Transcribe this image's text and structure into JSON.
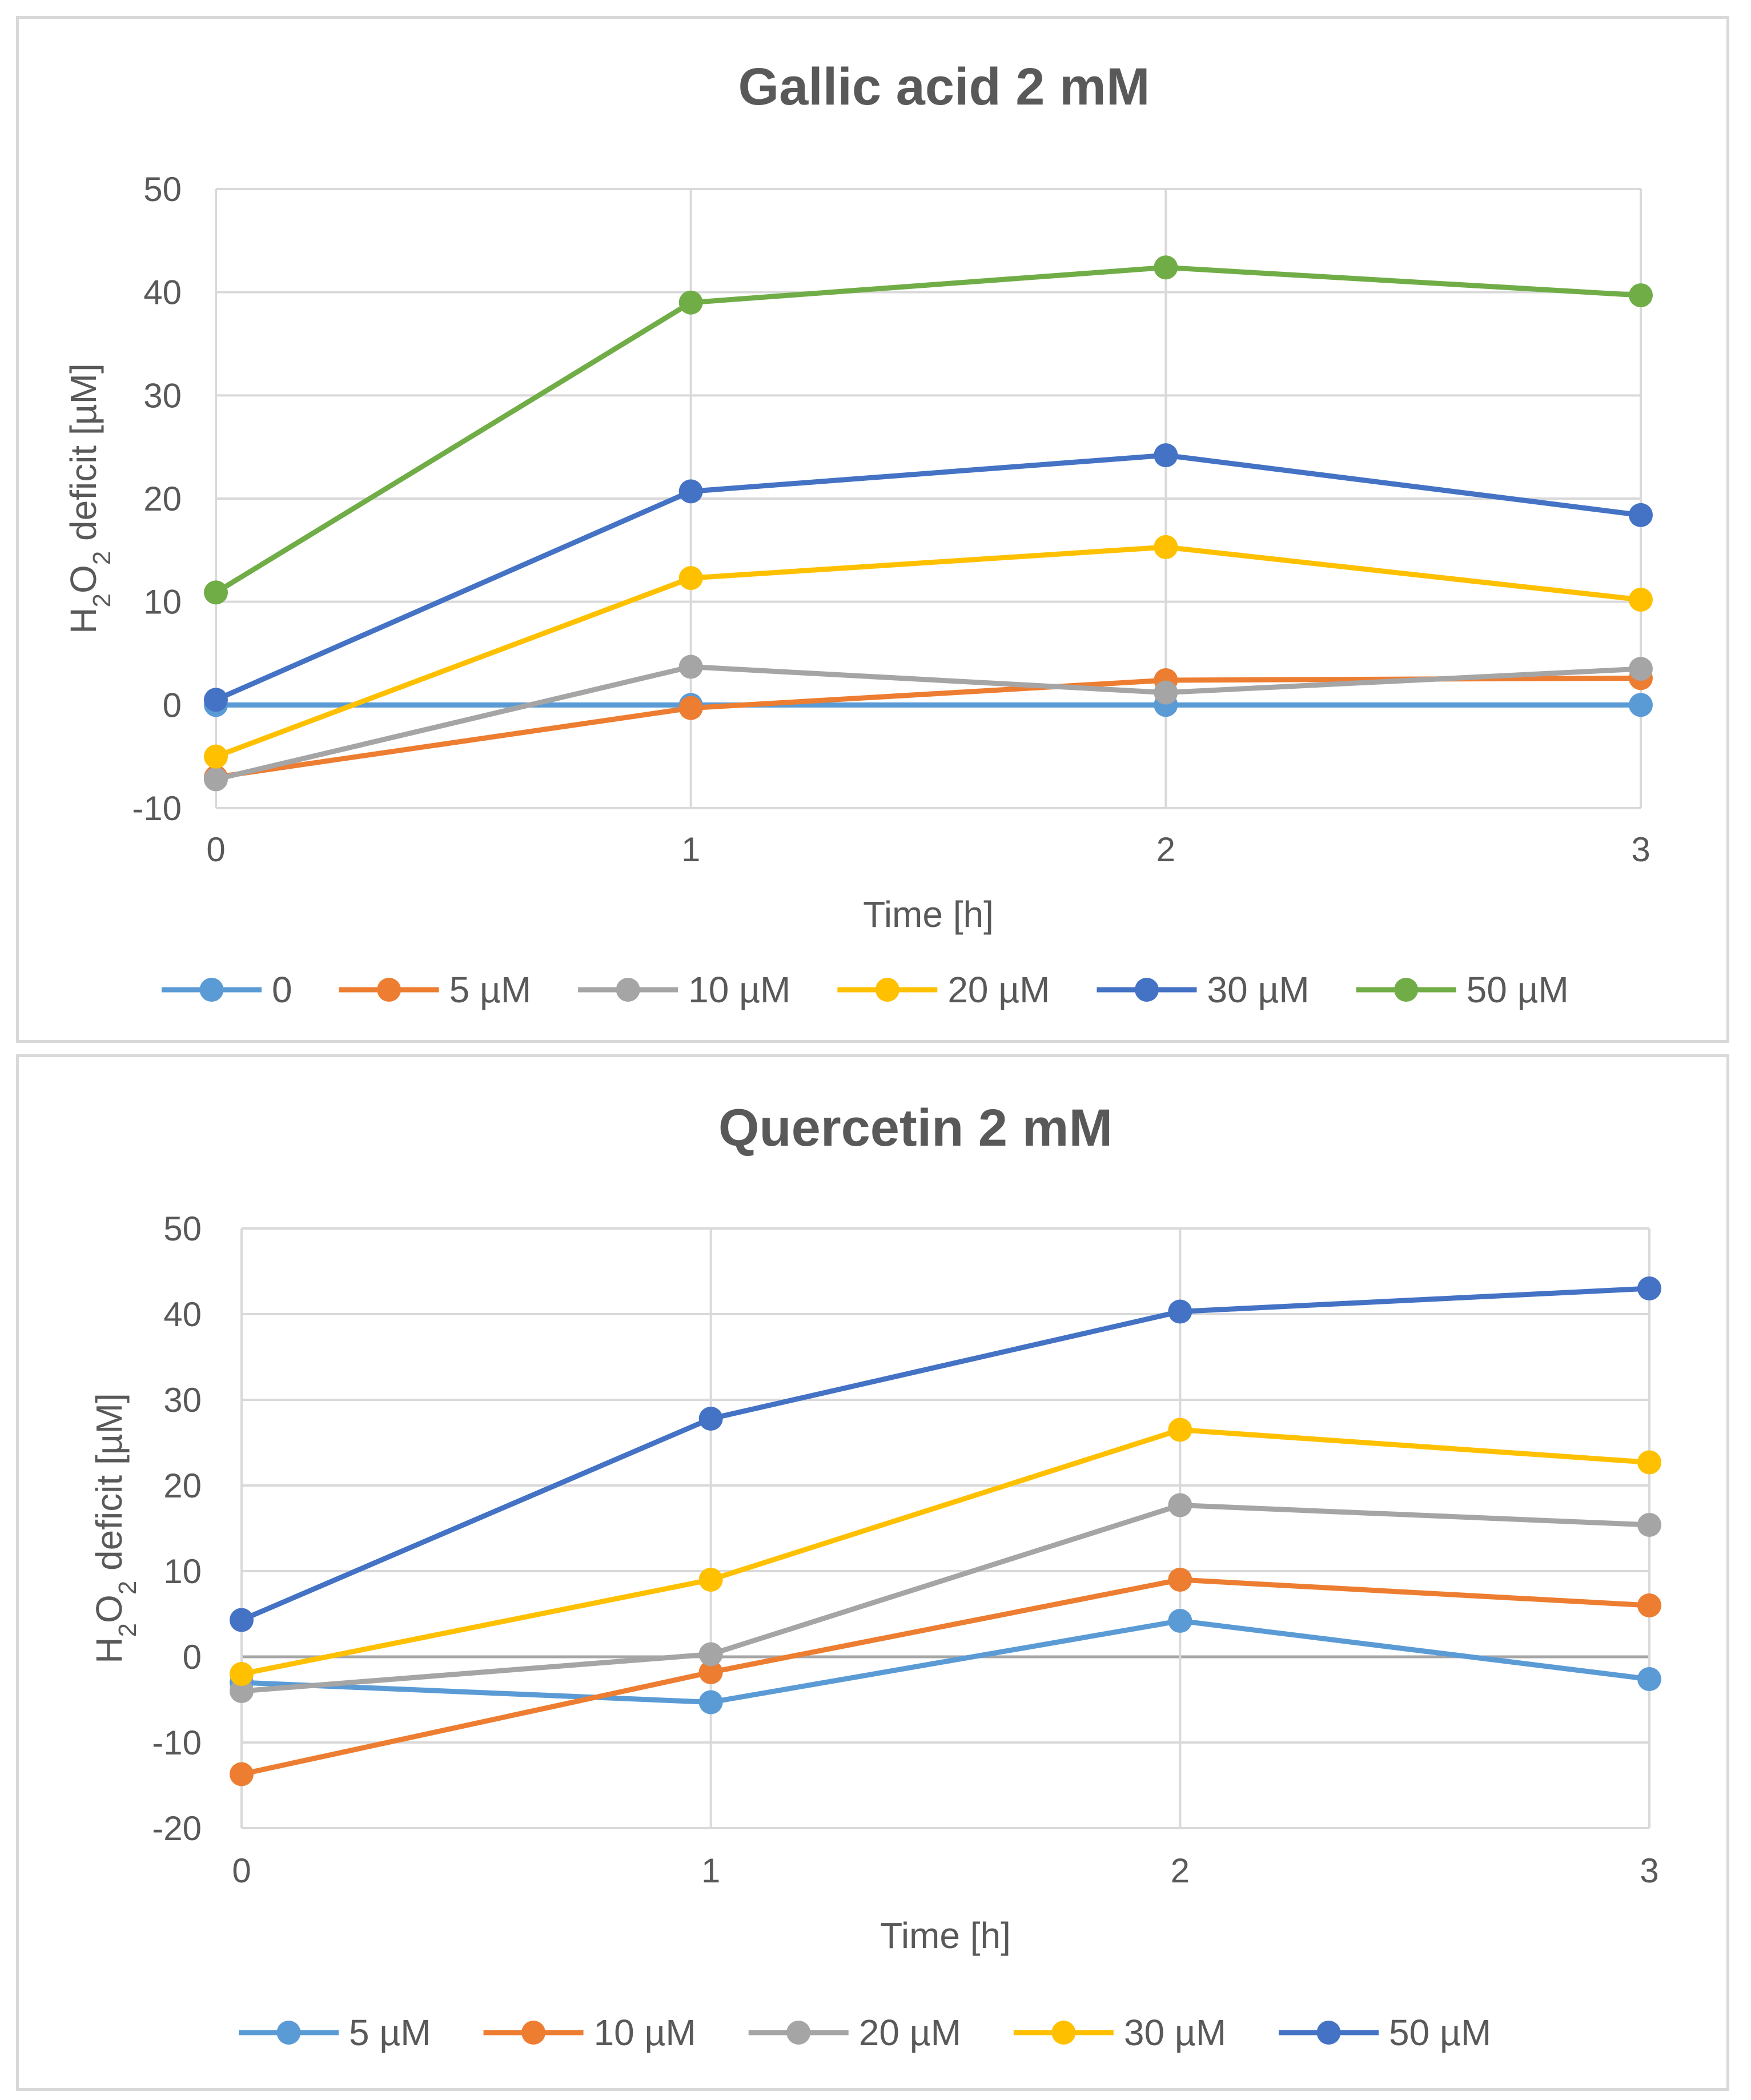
{
  "chart_data": [
    {
      "type": "line",
      "title": "Gallic acid 2 mM",
      "xlabel": "Time [h]",
      "ylabel": "H2O2 deficit [µM]",
      "ylabel_parts": {
        "pre": "H",
        "sub1": "2",
        "mid": "O",
        "sub2": "2",
        "post": " deficit [µM]"
      },
      "x": [
        0,
        1,
        2,
        3
      ],
      "x_tick_labels": [
        "0",
        "1",
        "2",
        "3"
      ],
      "ylim": [
        -10,
        50
      ],
      "y_ticks": [
        -10,
        0,
        10,
        20,
        30,
        40,
        50
      ],
      "y_tick_labels": [
        "-10",
        "0",
        "10",
        "20",
        "30",
        "40",
        "50"
      ],
      "grid": true,
      "legend_position": "bottom",
      "series": [
        {
          "name": "0",
          "color": "#5B9BD5",
          "values": [
            0,
            0,
            0,
            0
          ]
        },
        {
          "name": "5 µM",
          "color": "#ED7D31",
          "values": [
            -7,
            -0.3,
            2.4,
            2.6
          ]
        },
        {
          "name": "10 µM",
          "color": "#A5A5A5",
          "values": [
            -7.2,
            3.7,
            1.2,
            3.5
          ]
        },
        {
          "name": "20 µM",
          "color": "#FFC000",
          "values": [
            -5,
            12.3,
            15.3,
            10.2
          ]
        },
        {
          "name": "30 µM",
          "color": "#4472C4",
          "values": [
            0.5,
            20.7,
            24.2,
            18.4
          ]
        },
        {
          "name": "50 µM",
          "color": "#70AD47",
          "values": [
            10.9,
            39,
            42.4,
            39.7
          ]
        }
      ]
    },
    {
      "type": "line",
      "title": "Quercetin 2 mM",
      "xlabel": "Time [h]",
      "ylabel": "H2O2 deficit [µM]",
      "ylabel_parts": {
        "pre": "H",
        "sub1": "2",
        "mid": "O",
        "sub2": "2",
        "post": " deficit [µM]"
      },
      "x": [
        0,
        1,
        2,
        3
      ],
      "x_tick_labels": [
        "0",
        "1",
        "2",
        "3"
      ],
      "ylim": [
        -20,
        50
      ],
      "y_ticks": [
        -20,
        -10,
        0,
        10,
        20,
        30,
        40,
        50
      ],
      "y_tick_labels": [
        "-20",
        "-10",
        "0",
        "10",
        "20",
        "30",
        "40",
        "50"
      ],
      "grid": true,
      "legend_position": "bottom",
      "series": [
        {
          "name": "5 µM",
          "color": "#5B9BD5",
          "values": [
            -3,
            -5.3,
            4.2,
            -2.6
          ]
        },
        {
          "name": "10 µM",
          "color": "#ED7D31",
          "values": [
            -13.7,
            -1.8,
            9,
            6
          ]
        },
        {
          "name": "20 µM",
          "color": "#A5A5A5",
          "values": [
            -4,
            0.3,
            17.7,
            15.4
          ]
        },
        {
          "name": "30 µM",
          "color": "#FFC000",
          "values": [
            -2,
            9,
            26.5,
            22.7
          ]
        },
        {
          "name": "50 µM",
          "color": "#4472C4",
          "values": [
            4.3,
            27.8,
            40.3,
            43
          ]
        }
      ]
    }
  ]
}
